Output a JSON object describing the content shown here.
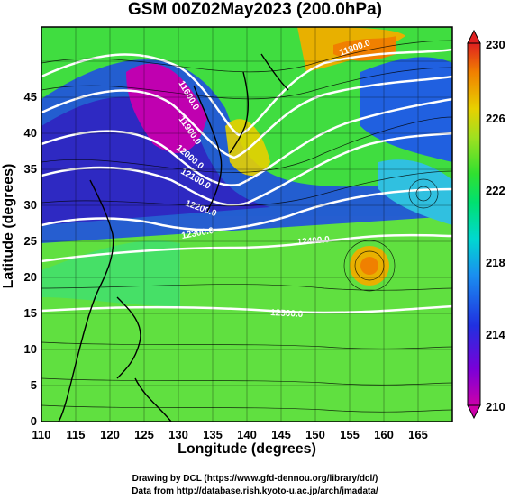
{
  "title": "GSM 00Z02May2023 (200.0hPa)",
  "x_axis": {
    "label": "Longitude (degrees)",
    "ticks": [
      "110",
      "115",
      "120",
      "125",
      "130",
      "135",
      "140",
      "145",
      "150",
      "155",
      "160",
      "165"
    ]
  },
  "y_axis": {
    "label": "Latitude  (degrees)",
    "ticks": [
      "0",
      "5",
      "10",
      "15",
      "20",
      "25",
      "30",
      "35",
      "40",
      "45"
    ]
  },
  "colorbar": {
    "ticks": [
      "210",
      "214",
      "218",
      "222",
      "226",
      "230"
    ],
    "colors": [
      "#cc00aa",
      "#7a00d8",
      "#2030e0",
      "#1a8ff0",
      "#00d8d0",
      "#00e070",
      "#30e030",
      "#a0e020",
      "#e8d000",
      "#f08000",
      "#e02020"
    ]
  },
  "contour_labels": [
    "11600.0",
    "11800.0",
    "11900.0",
    "12000.0",
    "12100.0",
    "12200.0",
    "12300.0",
    "12400.0",
    "12500.0"
  ],
  "credits": {
    "line1": "Drawing by DCL (https://www.gfd-dennou.org/library/dcl/)",
    "line2": "Data from http://database.rish.kyoto-u.ac.jp/arch/jmadata/"
  }
}
